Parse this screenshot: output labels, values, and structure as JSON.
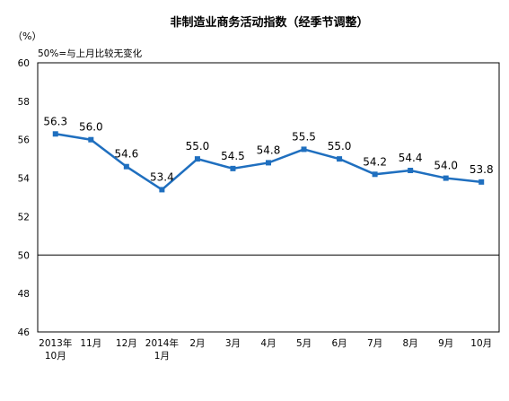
{
  "chart_data": {
    "type": "line",
    "title": "非制造业商务活动指数（经季节调整）",
    "yunit": "（%）",
    "annotation": "50%=与上月比较无变化",
    "categories": [
      [
        "2013年",
        "10月"
      ],
      [
        "11月"
      ],
      [
        "12月"
      ],
      [
        "2014年",
        "1月"
      ],
      [
        "2月"
      ],
      [
        "3月"
      ],
      [
        "4月"
      ],
      [
        "5月"
      ],
      [
        "6月"
      ],
      [
        "7月"
      ],
      [
        "8月"
      ],
      [
        "9月"
      ],
      [
        "10月"
      ]
    ],
    "values": [
      56.3,
      56.0,
      54.6,
      53.4,
      55.0,
      54.5,
      54.8,
      55.5,
      55.0,
      54.2,
      54.4,
      54.0,
      53.8
    ],
    "data_labels": [
      "56.3",
      "56.0",
      "54.6",
      "53.4",
      "55.0",
      "54.5",
      "54.8",
      "55.5",
      "55.0",
      "54.2",
      "54.4",
      "54.0",
      "53.8"
    ],
    "ylim": [
      46,
      60
    ],
    "yticks": [
      46,
      48,
      50,
      52,
      54,
      56,
      58,
      60
    ],
    "reference_line": 50,
    "series_color": "#1f6fbf",
    "grid": false
  }
}
